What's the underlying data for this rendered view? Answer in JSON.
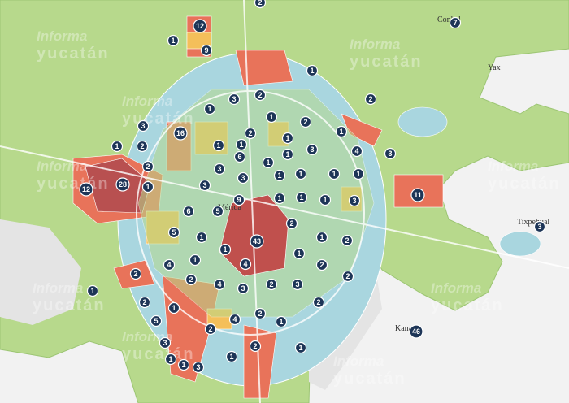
{
  "markers": [
    "2",
    "7",
    "12",
    "1",
    "9",
    "1",
    "2",
    "3",
    "1",
    "2",
    "1",
    "2",
    "3",
    "16",
    "2",
    "1",
    "2",
    "1",
    "1",
    "1",
    "1",
    "3",
    "4",
    "3",
    "6",
    "3",
    "2",
    "1",
    "1",
    "28",
    "12",
    "1",
    "3",
    "3",
    "1",
    "1",
    "1",
    "1",
    "11",
    "9",
    "1",
    "1",
    "1",
    "3",
    "6",
    "5",
    "2",
    "5",
    "1",
    "43",
    "1",
    "2",
    "1",
    "1",
    "4",
    "1",
    "2",
    "2",
    "4",
    "2",
    "2",
    "4",
    "3",
    "2",
    "3",
    "1",
    "2",
    "2",
    "1",
    "2",
    "4",
    "5",
    "1",
    "2",
    "2",
    "3",
    "1",
    "3",
    "1",
    "1",
    "1",
    "46",
    "3"
  ],
  "places": [
    "Conkal",
    "Yax",
    "Tixpehual",
    "Kanasín",
    "Mérida"
  ],
  "watermark": {
    "line1": "Informa",
    "line2": "yucatán"
  }
}
